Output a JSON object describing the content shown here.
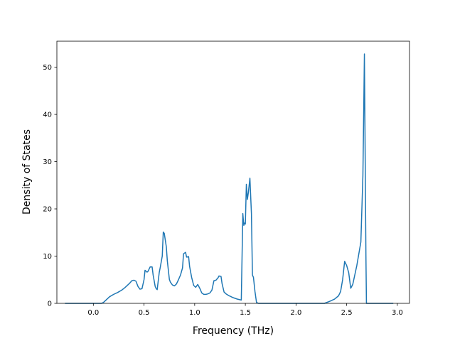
{
  "chart_data": {
    "type": "line",
    "title": "",
    "xlabel": "Frequency (THz)",
    "ylabel": "Density of States",
    "xlim": [
      -0.36,
      3.12
    ],
    "ylim": [
      0,
      55.5
    ],
    "xticks": [
      0.0,
      0.5,
      1.0,
      1.5,
      2.0,
      2.5,
      3.0
    ],
    "xtick_labels": [
      "0.0",
      "0.5",
      "1.0",
      "1.5",
      "2.0",
      "2.5",
      "3.0"
    ],
    "yticks": [
      0,
      10,
      20,
      30,
      40,
      50
    ],
    "ytick_labels": [
      "0",
      "10",
      "20",
      "30",
      "40",
      "50"
    ],
    "grid": false,
    "legend": "none",
    "line_color": "#1f77b4",
    "series": [
      {
        "x": [
          -0.28,
          0.0,
          0.08,
          0.1,
          0.13,
          0.16,
          0.2,
          0.24,
          0.28,
          0.31,
          0.33,
          0.36,
          0.38,
          0.4,
          0.42,
          0.44,
          0.46,
          0.48,
          0.5,
          0.51,
          0.53,
          0.54,
          0.56,
          0.58,
          0.59,
          0.61,
          0.62,
          0.63,
          0.65,
          0.66,
          0.68,
          0.69,
          0.7,
          0.72,
          0.73,
          0.75,
          0.76,
          0.78,
          0.8,
          0.82,
          0.84,
          0.86,
          0.88,
          0.89,
          0.91,
          0.92,
          0.94,
          0.95,
          0.97,
          0.99,
          1.01,
          1.03,
          1.05,
          1.07,
          1.09,
          1.11,
          1.13,
          1.15,
          1.17,
          1.19,
          1.21,
          1.23,
          1.24,
          1.26,
          1.27,
          1.29,
          1.31,
          1.34,
          1.38,
          1.42,
          1.46,
          1.475,
          1.485,
          1.49,
          1.5,
          1.51,
          1.52,
          1.53,
          1.545,
          1.56,
          1.57,
          1.58,
          1.595,
          1.61,
          1.63,
          1.65,
          2.0,
          2.28,
          2.33,
          2.38,
          2.42,
          2.44,
          2.46,
          2.48,
          2.5,
          2.52,
          2.54,
          2.56,
          2.58,
          2.6,
          2.62,
          2.64,
          2.66,
          2.665,
          2.675,
          2.683,
          2.69,
          2.695,
          2.7,
          2.96
        ],
        "y": [
          0,
          0,
          0,
          0.2,
          0.8,
          1.4,
          1.9,
          2.3,
          2.8,
          3.3,
          3.7,
          4.3,
          4.8,
          4.9,
          4.7,
          3.6,
          3.0,
          3.1,
          5.0,
          7.0,
          6.6,
          6.8,
          7.7,
          7.7,
          6.0,
          3.6,
          3.1,
          2.9,
          6.5,
          7.6,
          10.0,
          15.1,
          14.8,
          12.0,
          9.0,
          5.1,
          4.5,
          3.9,
          3.7,
          4.1,
          5.0,
          6.0,
          7.5,
          10.5,
          10.8,
          9.8,
          9.9,
          7.8,
          5.5,
          3.8,
          3.4,
          4.0,
          3.2,
          2.2,
          1.9,
          1.9,
          2.0,
          2.2,
          2.8,
          4.8,
          4.9,
          5.4,
          5.8,
          5.7,
          4.2,
          2.4,
          2.0,
          1.6,
          1.2,
          0.9,
          0.7,
          19.0,
          16.5,
          17.0,
          16.8,
          25.2,
          22.0,
          23.5,
          26.5,
          19.0,
          6.0,
          5.5,
          2.5,
          0.2,
          0,
          0,
          0,
          0,
          0.4,
          0.9,
          1.6,
          2.5,
          5.0,
          8.9,
          8.0,
          6.5,
          3.2,
          4.0,
          6.0,
          8.0,
          10.5,
          13.0,
          27.0,
          35.0,
          52.8,
          30.0,
          10.0,
          0,
          0,
          0
        ]
      }
    ]
  }
}
